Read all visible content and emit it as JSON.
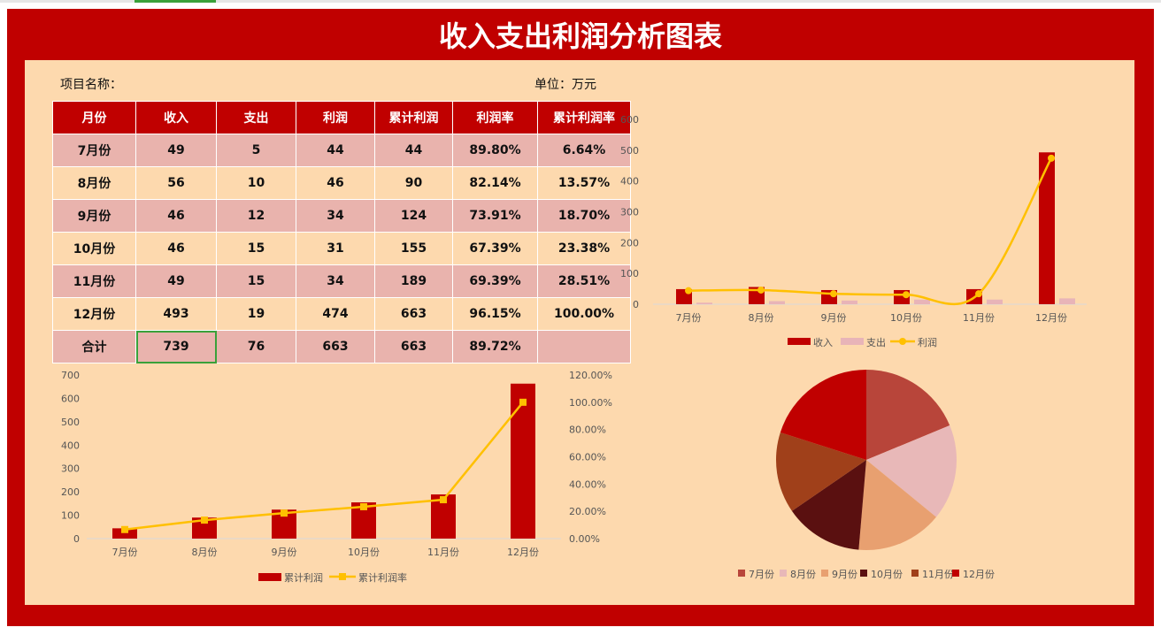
{
  "title": "收入支出利润分析图表",
  "project_label": "项目名称：",
  "unit_label": "单位：万元",
  "table": {
    "headers": [
      "月份",
      "收入",
      "支出",
      "利润",
      "累计利润",
      "利润率",
      "累计利润率"
    ],
    "rows": [
      [
        "7月份",
        "49",
        "5",
        "44",
        "44",
        "89.80%",
        "6.64%"
      ],
      [
        "8月份",
        "56",
        "10",
        "46",
        "90",
        "82.14%",
        "13.57%"
      ],
      [
        "9月份",
        "46",
        "12",
        "34",
        "124",
        "73.91%",
        "18.70%"
      ],
      [
        "10月份",
        "46",
        "15",
        "31",
        "155",
        "67.39%",
        "23.38%"
      ],
      [
        "11月份",
        "49",
        "15",
        "34",
        "189",
        "69.39%",
        "28.51%"
      ],
      [
        "12月份",
        "493",
        "19",
        "474",
        "663",
        "96.15%",
        "100.00%"
      ],
      [
        "合计",
        "739",
        "76",
        "663",
        "663",
        "89.72%",
        ""
      ]
    ]
  },
  "colors": {
    "red": "#c00000",
    "pink": "#e8b4b8",
    "gold": "#ffc000",
    "panel": "#fdd9ae"
  },
  "chart_data": [
    {
      "type": "bar+line",
      "categories": [
        "7月份",
        "8月份",
        "9月份",
        "10月份",
        "11月份",
        "12月份"
      ],
      "ylim": [
        0,
        600
      ],
      "yticks": [
        0,
        100,
        200,
        300,
        400,
        500,
        600
      ],
      "legend": "bottom",
      "series": [
        {
          "name": "收入",
          "type": "bar",
          "values": [
            49,
            56,
            46,
            46,
            49,
            493
          ]
        },
        {
          "name": "支出",
          "type": "bar",
          "values": [
            5,
            10,
            12,
            15,
            15,
            19
          ]
        },
        {
          "name": "利润",
          "type": "line",
          "values": [
            44,
            46,
            34,
            31,
            34,
            474
          ]
        }
      ]
    },
    {
      "type": "bar+line",
      "categories": [
        "7月份",
        "8月份",
        "9月份",
        "10月份",
        "11月份",
        "12月份"
      ],
      "ylim": [
        0,
        700
      ],
      "yticks": [
        0,
        100,
        200,
        300,
        400,
        500,
        600,
        700
      ],
      "y2lim": [
        0,
        1.2
      ],
      "y2ticks": [
        "0.00%",
        "20.00%",
        "40.00%",
        "60.00%",
        "80.00%",
        "100.00%",
        "120.00%"
      ],
      "legend": "bottom",
      "series": [
        {
          "name": "累计利润",
          "type": "bar",
          "values": [
            44,
            90,
            124,
            155,
            189,
            663
          ]
        },
        {
          "name": "累计利润率",
          "type": "line",
          "axis": "secondary",
          "values": [
            0.0664,
            0.1357,
            0.187,
            0.2338,
            0.2851,
            1.0
          ]
        }
      ]
    },
    {
      "type": "pie",
      "categories": [
        "7月份",
        "8月份",
        "9月份",
        "10月份",
        "11月份",
        "12月份"
      ],
      "values": [
        89.8,
        82.14,
        73.91,
        67.39,
        69.39,
        96.15
      ],
      "colors": [
        "#b8453a",
        "#e8b8b8",
        "#e8a070",
        "#5a1010",
        "#a0401a",
        "#c00000"
      ],
      "legend": "bottom"
    }
  ]
}
